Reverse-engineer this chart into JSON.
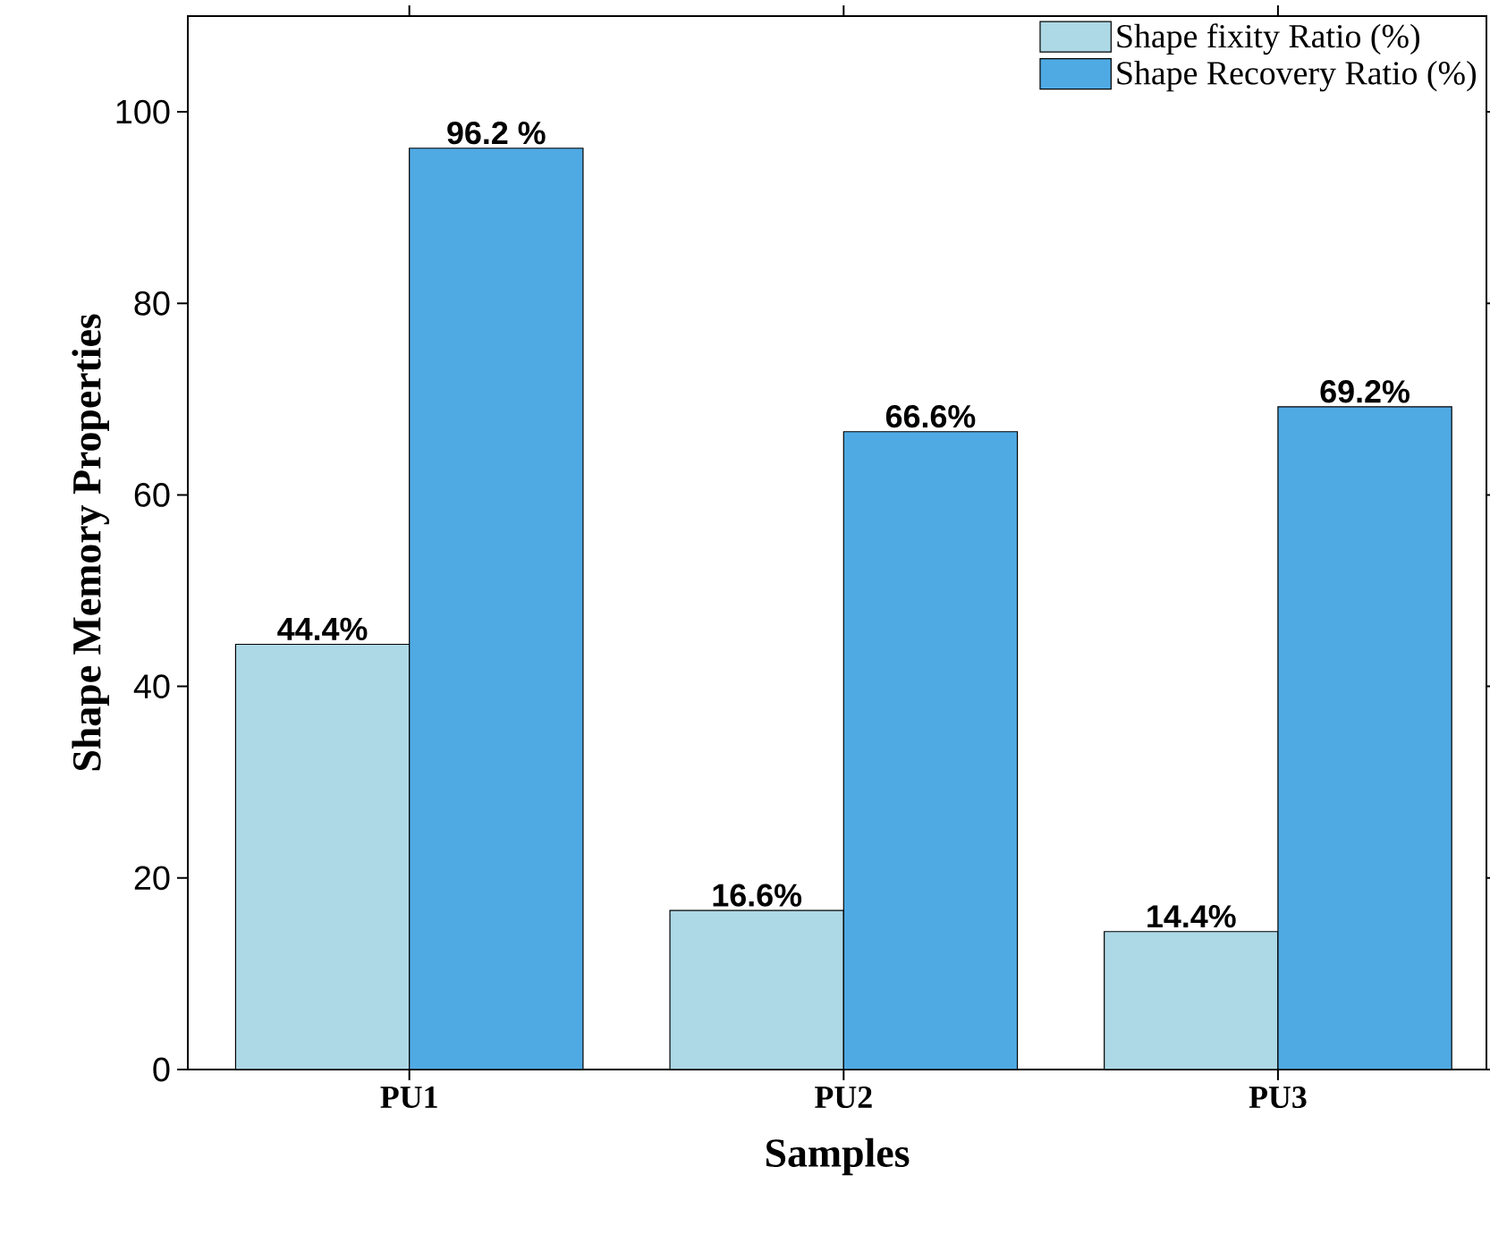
{
  "chart_data": {
    "type": "bar",
    "xlabel": "Samples",
    "ylabel": "Shape Memory Properties",
    "categories": [
      "PU1",
      "PU2",
      "PU3"
    ],
    "series": [
      {
        "name": "Shape fixity Ratio (%)",
        "color": "#add8e6",
        "values": [
          44.4,
          16.6,
          14.4
        ],
        "value_labels": [
          "44.4%",
          "16.6%",
          "14.4%"
        ]
      },
      {
        "name": "Shape Recovery Ratio (%)",
        "color": "#4faae4",
        "values": [
          96.2,
          66.6,
          69.2
        ],
        "value_labels": [
          "96.2 %",
          "66.6%",
          "69.2%"
        ]
      }
    ],
    "ylim": [
      0,
      110
    ],
    "yticks": [
      0,
      20,
      40,
      60,
      80,
      100
    ],
    "legend": "top right"
  }
}
